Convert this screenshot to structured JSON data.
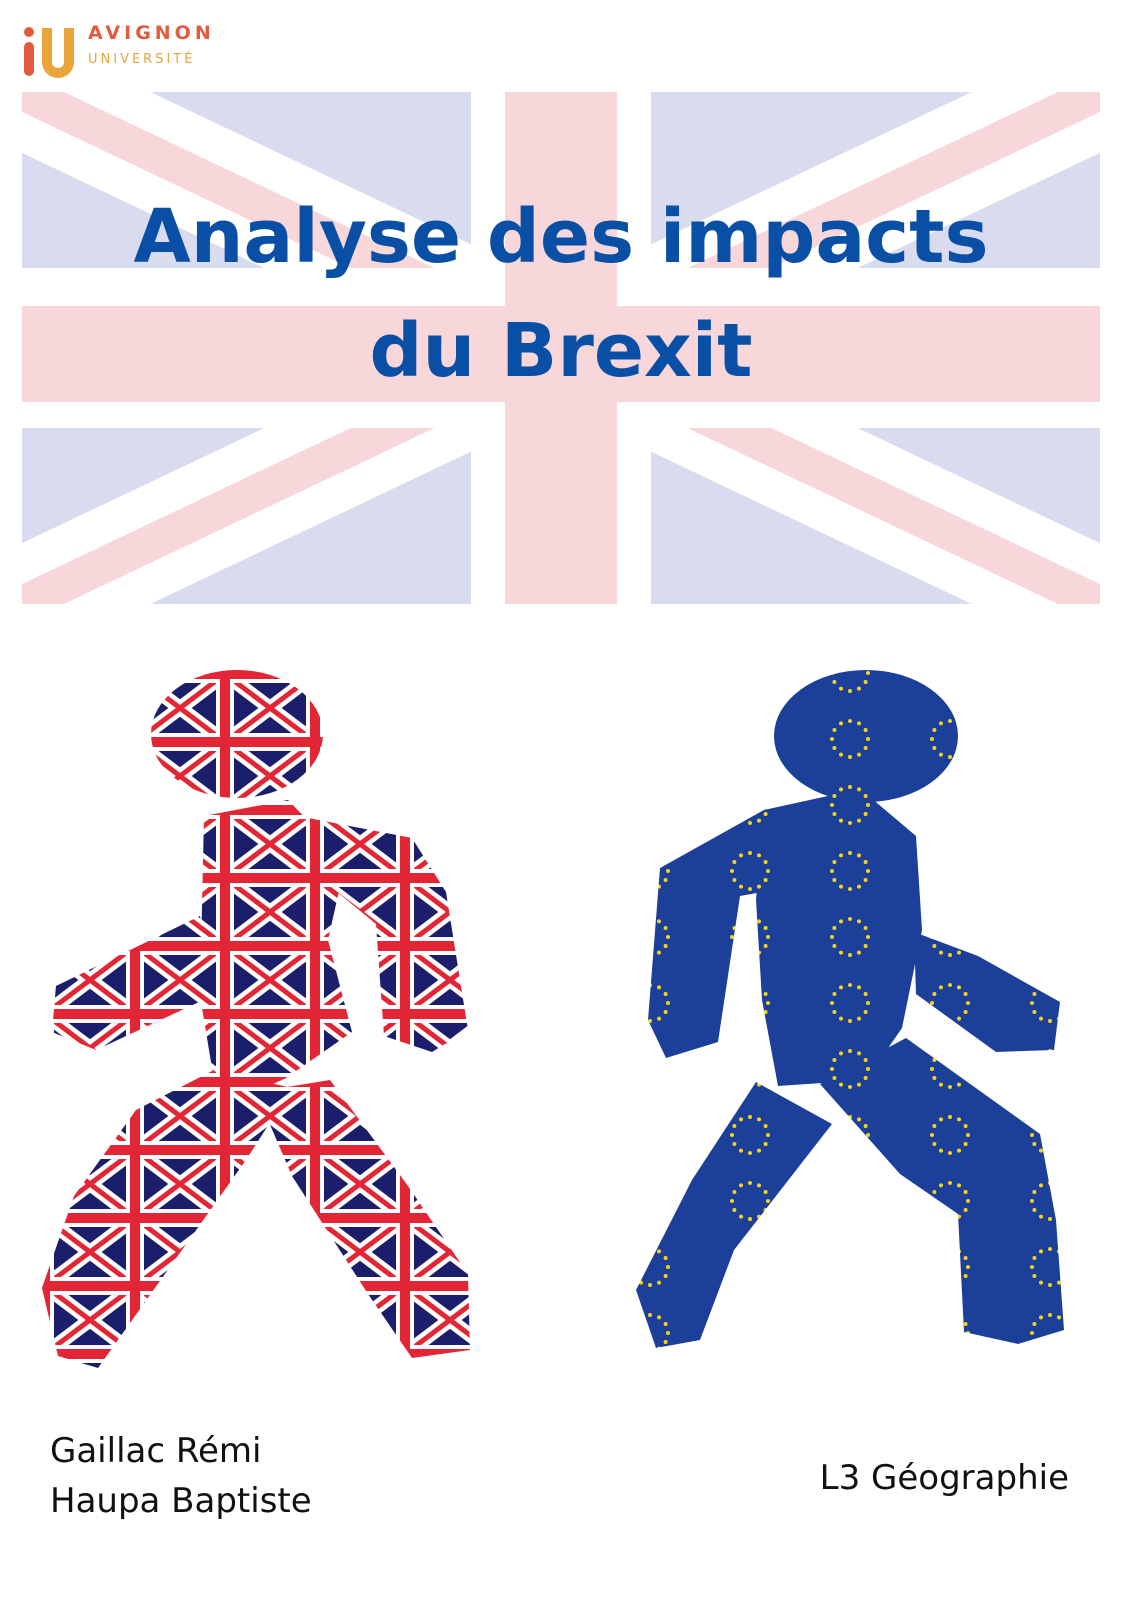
{
  "logo": {
    "line1": "AVIGNON",
    "line2": "UNIVERSITÉ",
    "icon": "avignon-universite-logo-icon"
  },
  "title": {
    "line1": "Analyse des impacts",
    "line2": "du Brexit"
  },
  "authors": [
    "Gaillac Rémi",
    "Haupa Baptiste"
  ],
  "course": "L3 Géographie",
  "colors": {
    "title": "#0a4fa6",
    "uk_blue": "#1b1f6b",
    "uk_red": "#e32636",
    "eu_blue": "#1c3f99",
    "eu_star": "#f4d21a",
    "logo_orange": "#e35b3f",
    "logo_yellow": "#e9a43a"
  },
  "illustrations": {
    "left_figure": "uk-flag-walking-person",
    "right_figure": "eu-flag-walking-person",
    "banner": "faded-union-jack-flag"
  }
}
